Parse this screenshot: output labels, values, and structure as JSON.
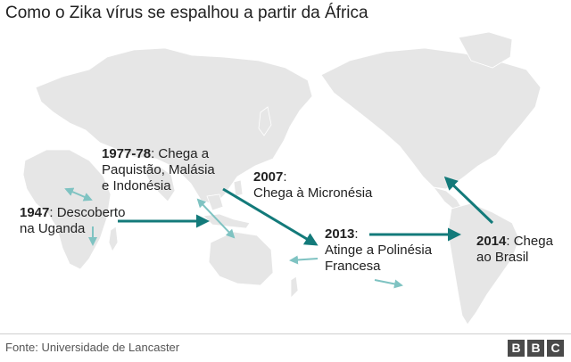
{
  "title": "Como o Zika vírus se espalhou a partir da África",
  "events": [
    {
      "year": "1947",
      "text_line1": ": Descoberto",
      "text_line2": "na Uganda"
    },
    {
      "year": "1977-78",
      "text_line1": ": Chega a",
      "text_line2": "Paquistão, Malásia",
      "text_line3": "e Indonésia"
    },
    {
      "year": "2007",
      "text_line1": ":",
      "text_line2": "Chega à Micronésia"
    },
    {
      "year": "2013",
      "text_line1": ":",
      "text_line2": "Atinge a Polinésia",
      "text_line3": "Francesa"
    },
    {
      "year": "2014",
      "text_line1": ": Chega",
      "text_line2": "ao Brasil"
    }
  ],
  "source": "Fonte: Universidade de Lancaster",
  "logo": [
    "B",
    "B",
    "C"
  ],
  "colors": {
    "land": "#e6e6e6",
    "main_arrow": "#137a7a",
    "secondary_arrow": "#7fc3c2"
  }
}
